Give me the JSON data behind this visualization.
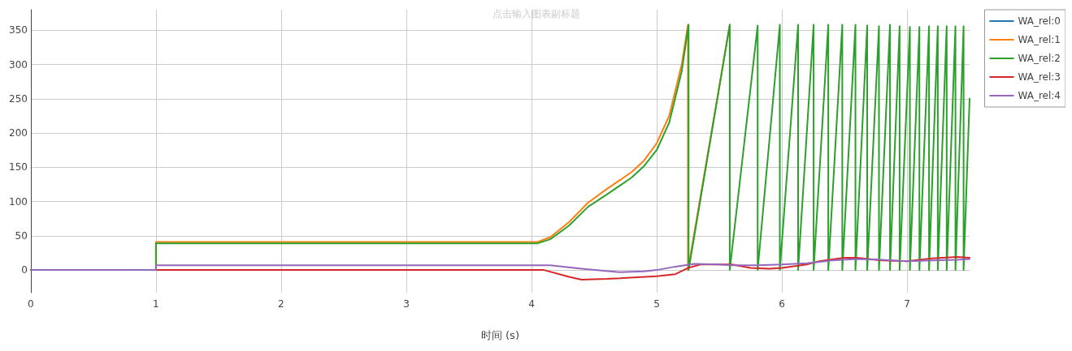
{
  "chart_data": {
    "type": "line",
    "subtitle": "点击输入图表副标题",
    "xlabel": "时间 (s)",
    "xlim": [
      0,
      7.5
    ],
    "xticks": [
      0,
      1,
      2,
      3,
      4,
      5,
      6,
      7
    ],
    "ylim": [
      -33,
      380
    ],
    "yticks": [
      0,
      50,
      100,
      150,
      200,
      250,
      300,
      350
    ],
    "grid": true,
    "legend": "top right",
    "marker": "none",
    "line_style": "solid",
    "series": [
      {
        "name": "WA_rel:0",
        "color": "#1f77b4"
      },
      {
        "name": "WA_rel:1",
        "color": "#ff7f0e",
        "x": [
          0,
          1,
          1,
          4.05,
          4.15,
          4.3,
          4.45,
          4.6,
          4.8,
          4.9,
          5.0,
          5.1,
          5.2,
          5.25,
          5.25,
          5.584
        ],
        "values": [
          0,
          0,
          41,
          41,
          48,
          70,
          98,
          118,
          143,
          160,
          185,
          225,
          300,
          358,
          0,
          358
        ]
      },
      {
        "name": "WA_rel:2",
        "color": "#2ca02c",
        "x": [
          0,
          1,
          1,
          4.05,
          4.15,
          4.3,
          4.45,
          4.6,
          4.8,
          4.9,
          5.0,
          5.1,
          5.2,
          5.255,
          5.255,
          5.584,
          5.584,
          5.807,
          5.807,
          5.984,
          5.984,
          6.13,
          6.13,
          6.254,
          6.254,
          6.371,
          6.371,
          6.483,
          6.483,
          6.588,
          6.588,
          6.682,
          6.682,
          6.776,
          6.776,
          6.864,
          6.864,
          6.941,
          6.941,
          7.023,
          7.023,
          7.099,
          7.099,
          7.176,
          7.176,
          7.246,
          7.246,
          7.317,
          7.317,
          7.387,
          7.387,
          7.452,
          7.452,
          7.5
        ],
        "values": [
          0,
          0,
          39,
          39,
          45,
          65,
          92,
          110,
          135,
          152,
          175,
          215,
          290,
          358,
          0,
          358,
          0,
          357,
          0,
          358,
          0,
          358,
          0,
          358,
          0,
          358,
          0,
          358,
          0,
          358,
          0,
          357,
          0,
          356,
          0,
          358,
          0,
          356,
          0,
          355,
          0,
          355,
          0,
          356,
          0,
          356,
          0,
          356,
          0,
          356,
          0,
          356,
          0,
          250
        ]
      },
      {
        "name": "WA_rel:3",
        "color": "#d62728",
        "x": [
          0,
          4.1,
          4.3,
          4.4,
          4.6,
          5.0,
          5.15,
          5.25,
          5.35,
          5.6,
          5.75,
          5.9,
          6.0,
          6.2,
          6.3,
          6.5,
          6.6,
          6.8,
          7.0,
          7.2,
          7.4,
          7.5
        ],
        "values": [
          0,
          0,
          -10,
          -14,
          -13,
          -9,
          -6,
          3,
          8,
          8,
          3,
          2,
          3,
          8,
          13,
          18,
          18,
          14,
          13,
          17,
          19,
          18
        ]
      },
      {
        "name": "WA_rel:4",
        "color": "#9467bd",
        "x": [
          0,
          1,
          1,
          4.15,
          4.4,
          4.7,
          4.9,
          5.0,
          5.15,
          5.3,
          5.5,
          5.6,
          5.8,
          6.0,
          6.2,
          6.4,
          6.6,
          6.8,
          7.0,
          7.2,
          7.4,
          7.5
        ],
        "values": [
          0,
          0,
          7,
          7,
          2,
          -3,
          -2,
          0,
          5,
          9,
          8,
          7,
          7,
          8,
          10,
          14,
          16,
          15,
          13,
          14,
          15,
          16
        ]
      }
    ]
  }
}
